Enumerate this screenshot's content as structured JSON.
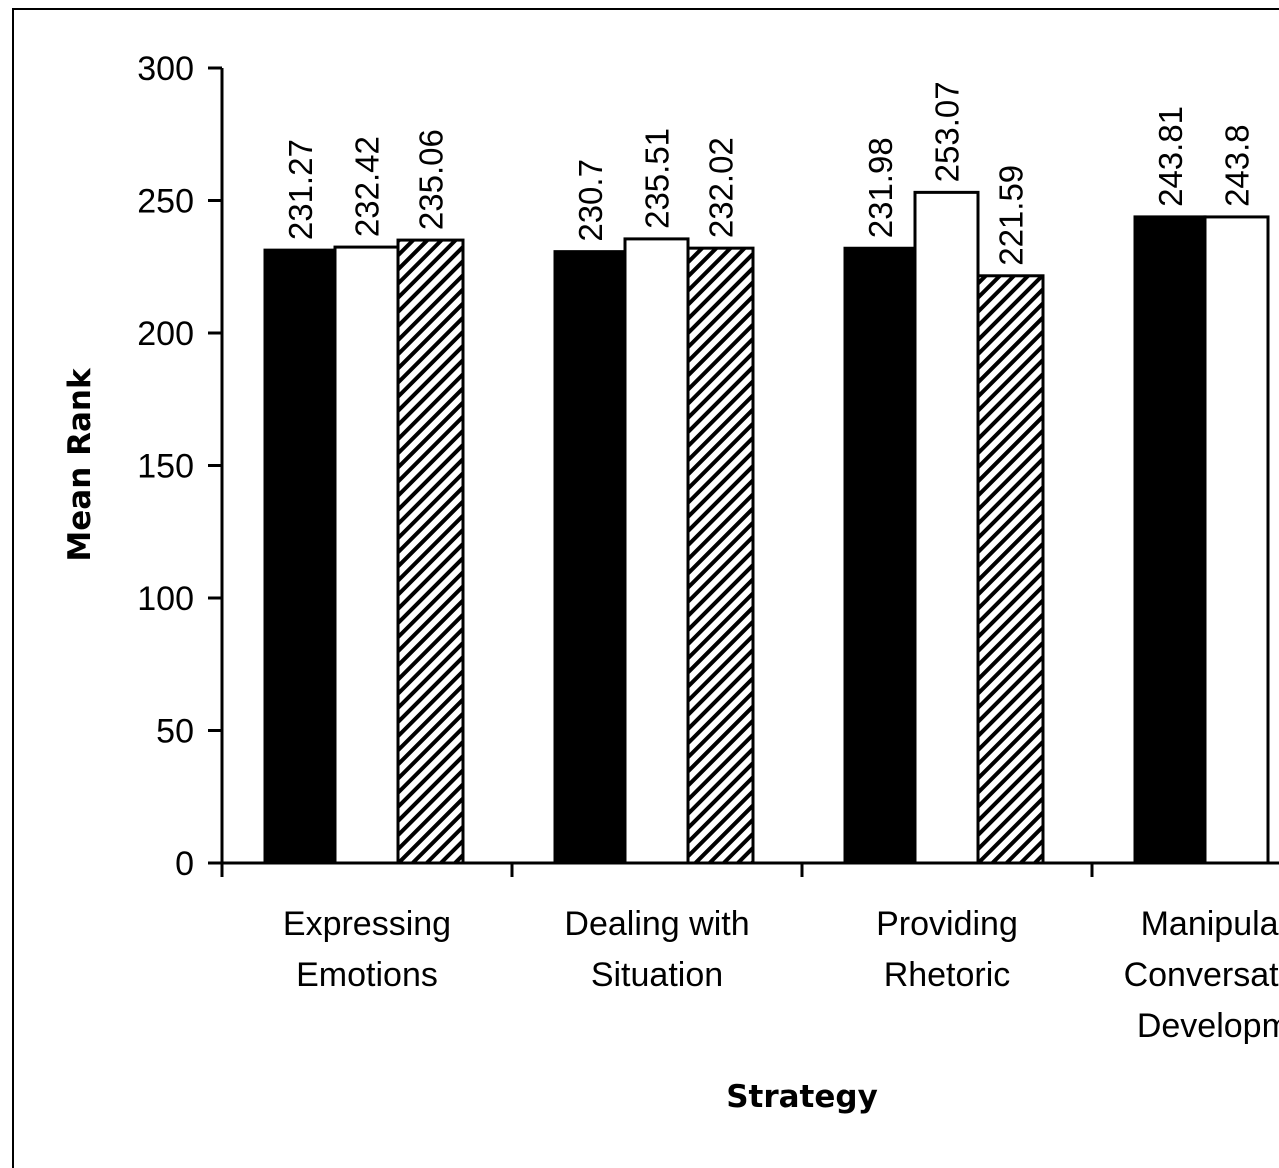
{
  "chart_data": {
    "type": "bar",
    "title": "",
    "xlabel": "Strategy",
    "ylabel": "Mean Rank",
    "ylim": [
      0,
      300
    ],
    "yticks": [
      0,
      50,
      100,
      150,
      200,
      250,
      300
    ],
    "grid": false,
    "categories": [
      [
        "Expressing",
        "Emotions"
      ],
      [
        "Dealing with",
        "Situation"
      ],
      [
        "Providing",
        "Rhetoric"
      ],
      [
        "Manipulating",
        "Conversational",
        "Development"
      ]
    ],
    "series": [
      {
        "fill": "solid-black",
        "values": [
          231.27,
          230.7,
          231.98,
          243.81
        ]
      },
      {
        "fill": "white",
        "values": [
          232.42,
          235.51,
          253.07,
          243.8
        ]
      },
      {
        "fill": "diagonal-hatch",
        "values": [
          235.06,
          232.02,
          221.59,
          null
        ]
      }
    ],
    "data_labels": [
      [
        "231.27",
        "230.7",
        "231.98",
        "243.81"
      ],
      [
        "232.42",
        "235.51",
        "253.07",
        "243.8"
      ],
      [
        "235.06",
        "232.02",
        "221.59",
        ""
      ]
    ]
  }
}
